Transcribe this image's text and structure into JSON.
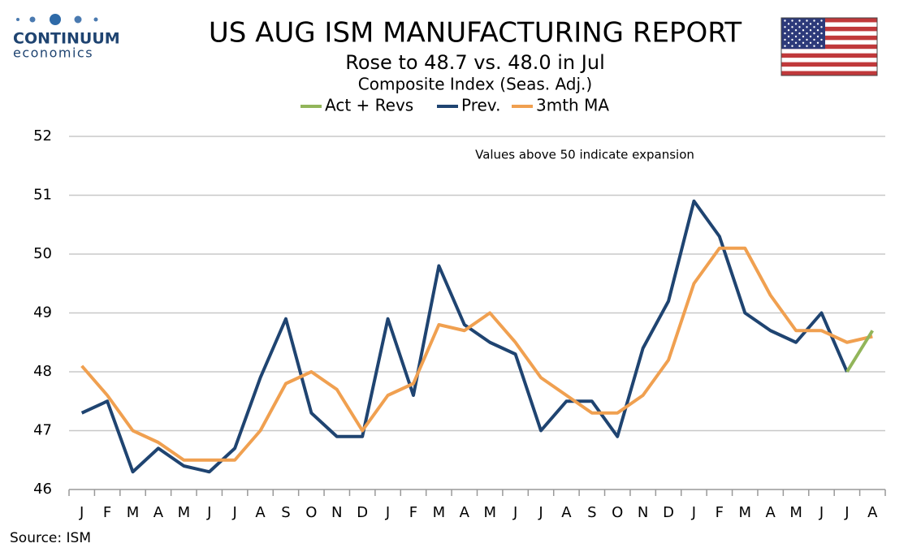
{
  "logo": {
    "name": "CONTINUUM",
    "tagline": "economics"
  },
  "chart_data": {
    "type": "line",
    "title": "US AUG ISM MANUFACTURING REPORT",
    "subtitle": "Rose to 48.7 vs. 48.0 in Jul",
    "subtitle2": "Composite Index (Seas. Adj.)",
    "annotation": "Values above 50 indicate expansion",
    "source": "Source: ISM",
    "categories": [
      "J",
      "F",
      "M",
      "A",
      "M",
      "J",
      "J",
      "A",
      "S",
      "O",
      "N",
      "D",
      "J",
      "F",
      "M",
      "A",
      "M",
      "J",
      "J",
      "A",
      "S",
      "O",
      "N",
      "D",
      "J",
      "F",
      "M",
      "A",
      "M",
      "J",
      "J",
      "A"
    ],
    "series": [
      {
        "name": "Act + Revs",
        "color": "#92b55a",
        "values": [
          null,
          null,
          null,
          null,
          null,
          null,
          null,
          null,
          null,
          null,
          null,
          null,
          null,
          null,
          null,
          null,
          null,
          null,
          null,
          null,
          null,
          null,
          null,
          null,
          null,
          null,
          null,
          null,
          null,
          null,
          48.0,
          48.7
        ]
      },
      {
        "name": "Prev.",
        "color": "#1f4471",
        "values": [
          47.3,
          47.5,
          46.3,
          46.7,
          46.4,
          46.3,
          46.7,
          47.9,
          48.9,
          47.3,
          46.9,
          46.9,
          48.9,
          47.6,
          49.8,
          48.8,
          48.5,
          48.3,
          47.0,
          47.5,
          47.5,
          46.9,
          48.4,
          49.2,
          50.9,
          50.3,
          49.0,
          48.7,
          48.5,
          49.0,
          48.0,
          null
        ]
      },
      {
        "name": "3mth MA",
        "color": "#f0a050",
        "values": [
          48.1,
          47.6,
          47.0,
          46.8,
          46.5,
          46.5,
          46.5,
          47.0,
          47.8,
          48.0,
          47.7,
          47.0,
          47.6,
          47.8,
          48.8,
          48.7,
          49.0,
          48.5,
          47.9,
          47.6,
          47.3,
          47.3,
          47.6,
          48.2,
          49.5,
          50.1,
          50.1,
          49.3,
          48.7,
          48.7,
          48.5,
          48.6
        ]
      }
    ],
    "ylim": [
      46,
      52
    ],
    "yticks": [
      46,
      47,
      48,
      49,
      50,
      51,
      52
    ],
    "grid": true,
    "legend": "top"
  }
}
